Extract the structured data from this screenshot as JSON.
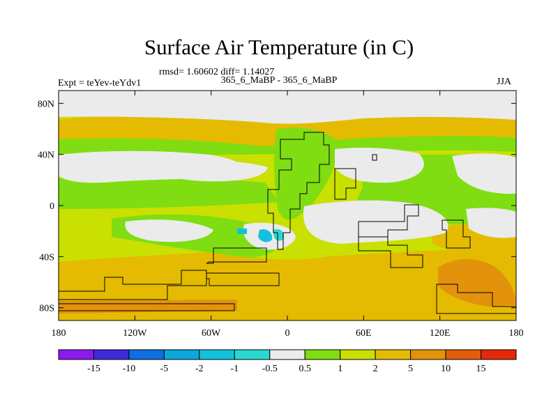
{
  "figure": {
    "title": "Surface Air Temperature (in C)",
    "stats": "rmsd= 1.60602 diff= 1.14027",
    "experiment": "Expt = teYev-teYdv1",
    "period": "365_6_MaBP - 365_6_MaBP",
    "season": "JJA"
  },
  "map": {
    "lat_labels": [
      "80N",
      "40N",
      "0",
      "40S",
      "80S"
    ],
    "lon_labels": [
      "180",
      "120W",
      "60W",
      "0",
      "60E",
      "120E",
      "180"
    ],
    "fields": {
      "base": "#c9e000",
      "warm": "#e4bb00",
      "weak": "#7fdd12",
      "neutral": "#ebebeb",
      "hot": "#e3930b",
      "cool": "#12c2dd",
      "cold": "#2bd8d1"
    }
  },
  "colorbar": {
    "colors": [
      "#8c1aec",
      "#3c2bd8",
      "#0d6fe2",
      "#0da7dc",
      "#12c2dd",
      "#2bd8d1",
      "#ebebeb",
      "#7fdd12",
      "#c9e000",
      "#e4bb00",
      "#e3930b",
      "#e35c0c",
      "#e6280a"
    ],
    "labels": [
      "-15",
      "-10",
      "-5",
      "-2",
      "-1",
      "-0.5",
      "0.5",
      "1",
      "2",
      "5",
      "10",
      "15"
    ]
  }
}
